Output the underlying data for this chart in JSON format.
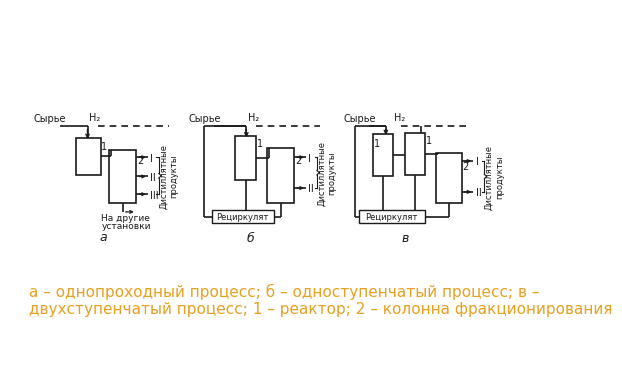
{
  "background_color": "#ffffff",
  "caption_color": "#e8a020",
  "caption_text": "а – однопроходный процесс; б – одноступенчатый процесс; в –\nдвухступенчатый процесс; 1 – реактор; 2 – колонна фракционирования",
  "caption_fontsize": 11
}
